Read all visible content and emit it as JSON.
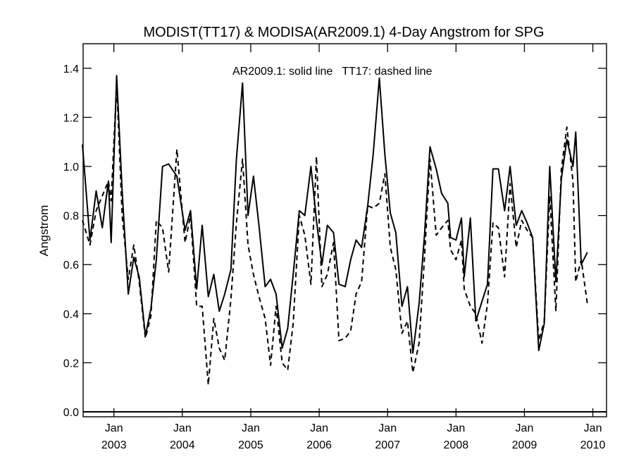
{
  "chart_data": {
    "type": "line",
    "title": "MODIST(TT17) & MODISA(AR2009.1) 4-Day Angstrom for SPG",
    "xlabel": "",
    "ylabel": "Angstrom",
    "annotation": "AR2009.1: solid line   TT17: dashed line",
    "xlim": [
      2002.55,
      2010.2
    ],
    "ylim": [
      -0.02,
      1.5
    ],
    "yticks": [
      0.0,
      0.2,
      0.4,
      0.6,
      0.8,
      1.0,
      1.2,
      1.4
    ],
    "ytick_labels": [
      "0.0",
      "0.2",
      "0.4",
      "0.6",
      "0.8",
      "1.0",
      "1.2",
      "1.4"
    ],
    "xticks": [
      2003,
      2004,
      2005,
      2006,
      2007,
      2008,
      2009,
      2010
    ],
    "xtick_month_labels": [
      "Jan",
      "Jan",
      "Jan",
      "Jan",
      "Jan",
      "Jan",
      "Jan",
      "Jan"
    ],
    "xtick_year_labels": [
      "2003",
      "2004",
      "2005",
      "2006",
      "2007",
      "2008",
      "2009",
      "2010"
    ],
    "zero_line": 0.0,
    "grid": false,
    "legend": "none",
    "series": [
      {
        "style": "solid",
        "points": [
          [
            2002.54,
            1.09
          ],
          [
            2002.65,
            0.7
          ],
          [
            2002.74,
            0.9
          ],
          [
            2002.83,
            0.75
          ],
          [
            2002.92,
            0.94
          ],
          [
            2002.96,
            0.69
          ],
          [
            2003.04,
            1.37
          ],
          [
            2003.12,
            0.9
          ],
          [
            2003.21,
            0.48
          ],
          [
            2003.29,
            0.63
          ],
          [
            2003.37,
            0.55
          ],
          [
            2003.46,
            0.31
          ],
          [
            2003.54,
            0.42
          ],
          [
            2003.62,
            0.62
          ],
          [
            2003.71,
            1.0
          ],
          [
            2003.8,
            1.01
          ],
          [
            2003.92,
            0.96
          ],
          [
            2004.04,
            0.74
          ],
          [
            2004.12,
            0.82
          ],
          [
            2004.21,
            0.5
          ],
          [
            2004.29,
            0.76
          ],
          [
            2004.38,
            0.47
          ],
          [
            2004.46,
            0.56
          ],
          [
            2004.54,
            0.41
          ],
          [
            2004.62,
            0.48
          ],
          [
            2004.71,
            0.58
          ],
          [
            2004.79,
            1.03
          ],
          [
            2004.88,
            1.34
          ],
          [
            2004.96,
            0.8
          ],
          [
            2005.04,
            0.96
          ],
          [
            2005.12,
            0.76
          ],
          [
            2005.21,
            0.51
          ],
          [
            2005.29,
            0.54
          ],
          [
            2005.37,
            0.48
          ],
          [
            2005.46,
            0.26
          ],
          [
            2005.54,
            0.34
          ],
          [
            2005.62,
            0.56
          ],
          [
            2005.71,
            0.82
          ],
          [
            2005.79,
            0.8
          ],
          [
            2005.88,
            1.0
          ],
          [
            2005.96,
            0.78
          ],
          [
            2006.04,
            0.6
          ],
          [
            2006.12,
            0.76
          ],
          [
            2006.21,
            0.73
          ],
          [
            2006.29,
            0.52
          ],
          [
            2006.38,
            0.51
          ],
          [
            2006.46,
            0.62
          ],
          [
            2006.54,
            0.7
          ],
          [
            2006.62,
            0.67
          ],
          [
            2006.71,
            0.84
          ],
          [
            2006.79,
            1.05
          ],
          [
            2006.88,
            1.36
          ],
          [
            2006.96,
            1.05
          ],
          [
            2007.04,
            0.81
          ],
          [
            2007.12,
            0.73
          ],
          [
            2007.21,
            0.43
          ],
          [
            2007.29,
            0.51
          ],
          [
            2007.37,
            0.24
          ],
          [
            2007.46,
            0.44
          ],
          [
            2007.54,
            0.72
          ],
          [
            2007.62,
            1.08
          ],
          [
            2007.71,
            0.99
          ],
          [
            2007.79,
            0.89
          ],
          [
            2007.88,
            0.85
          ],
          [
            2007.92,
            0.71
          ],
          [
            2008.0,
            0.7
          ],
          [
            2008.08,
            0.79
          ],
          [
            2008.12,
            0.55
          ],
          [
            2008.21,
            0.79
          ],
          [
            2008.29,
            0.37
          ],
          [
            2008.38,
            0.45
          ],
          [
            2008.46,
            0.52
          ],
          [
            2008.54,
            0.99
          ],
          [
            2008.62,
            0.99
          ],
          [
            2008.71,
            0.82
          ],
          [
            2008.79,
            1.0
          ],
          [
            2008.88,
            0.76
          ],
          [
            2008.96,
            0.82
          ],
          [
            2009.04,
            0.77
          ],
          [
            2009.12,
            0.71
          ],
          [
            2009.21,
            0.25
          ],
          [
            2009.29,
            0.36
          ],
          [
            2009.37,
            1.0
          ],
          [
            2009.46,
            0.53
          ],
          [
            2009.54,
            0.95
          ],
          [
            2009.62,
            1.11
          ],
          [
            2009.71,
            1.0
          ],
          [
            2009.75,
            1.14
          ],
          [
            2009.83,
            0.6
          ],
          [
            2009.92,
            0.65
          ]
        ]
      },
      {
        "style": "dashed",
        "points": [
          [
            2002.54,
            0.78
          ],
          [
            2002.65,
            0.68
          ],
          [
            2002.74,
            0.82
          ],
          [
            2002.83,
            0.88
          ],
          [
            2002.92,
            0.94
          ],
          [
            2002.96,
            0.86
          ],
          [
            2003.04,
            1.34
          ],
          [
            2003.12,
            0.8
          ],
          [
            2003.21,
            0.54
          ],
          [
            2003.29,
            0.68
          ],
          [
            2003.37,
            0.53
          ],
          [
            2003.46,
            0.3
          ],
          [
            2003.54,
            0.39
          ],
          [
            2003.62,
            0.78
          ],
          [
            2003.71,
            0.75
          ],
          [
            2003.8,
            0.57
          ],
          [
            2003.92,
            1.07
          ],
          [
            2004.04,
            0.69
          ],
          [
            2004.12,
            0.8
          ],
          [
            2004.21,
            0.43
          ],
          [
            2004.29,
            0.43
          ],
          [
            2004.38,
            0.11
          ],
          [
            2004.46,
            0.38
          ],
          [
            2004.54,
            0.26
          ],
          [
            2004.62,
            0.21
          ],
          [
            2004.71,
            0.46
          ],
          [
            2004.79,
            0.77
          ],
          [
            2004.88,
            1.03
          ],
          [
            2004.96,
            0.68
          ],
          [
            2005.04,
            0.56
          ],
          [
            2005.12,
            0.47
          ],
          [
            2005.21,
            0.38
          ],
          [
            2005.29,
            0.19
          ],
          [
            2005.37,
            0.43
          ],
          [
            2005.46,
            0.2
          ],
          [
            2005.54,
            0.17
          ],
          [
            2005.62,
            0.36
          ],
          [
            2005.71,
            0.8
          ],
          [
            2005.79,
            0.72
          ],
          [
            2005.88,
            0.52
          ],
          [
            2005.96,
            1.04
          ],
          [
            2006.04,
            0.51
          ],
          [
            2006.12,
            0.56
          ],
          [
            2006.21,
            0.69
          ],
          [
            2006.29,
            0.29
          ],
          [
            2006.38,
            0.3
          ],
          [
            2006.46,
            0.33
          ],
          [
            2006.54,
            0.48
          ],
          [
            2006.62,
            0.53
          ],
          [
            2006.71,
            0.84
          ],
          [
            2006.79,
            0.83
          ],
          [
            2006.88,
            0.85
          ],
          [
            2006.96,
            0.97
          ],
          [
            2007.04,
            0.67
          ],
          [
            2007.12,
            0.58
          ],
          [
            2007.21,
            0.32
          ],
          [
            2007.29,
            0.37
          ],
          [
            2007.37,
            0.16
          ],
          [
            2007.46,
            0.28
          ],
          [
            2007.54,
            0.63
          ],
          [
            2007.62,
            1.03
          ],
          [
            2007.71,
            0.72
          ],
          [
            2007.79,
            0.75
          ],
          [
            2007.88,
            0.78
          ],
          [
            2007.92,
            0.66
          ],
          [
            2008.0,
            0.62
          ],
          [
            2008.08,
            0.7
          ],
          [
            2008.12,
            0.5
          ],
          [
            2008.21,
            0.43
          ],
          [
            2008.29,
            0.4
          ],
          [
            2008.38,
            0.28
          ],
          [
            2008.46,
            0.44
          ],
          [
            2008.54,
            0.77
          ],
          [
            2008.62,
            0.75
          ],
          [
            2008.71,
            0.55
          ],
          [
            2008.79,
            0.93
          ],
          [
            2008.88,
            0.67
          ],
          [
            2008.96,
            0.78
          ],
          [
            2009.04,
            0.74
          ],
          [
            2009.12,
            0.71
          ],
          [
            2009.21,
            0.29
          ],
          [
            2009.29,
            0.37
          ],
          [
            2009.37,
            0.88
          ],
          [
            2009.46,
            0.41
          ],
          [
            2009.54,
            0.99
          ],
          [
            2009.62,
            1.16
          ],
          [
            2009.71,
            0.94
          ],
          [
            2009.75,
            0.53
          ],
          [
            2009.83,
            0.62
          ],
          [
            2009.92,
            0.44
          ]
        ]
      }
    ]
  }
}
